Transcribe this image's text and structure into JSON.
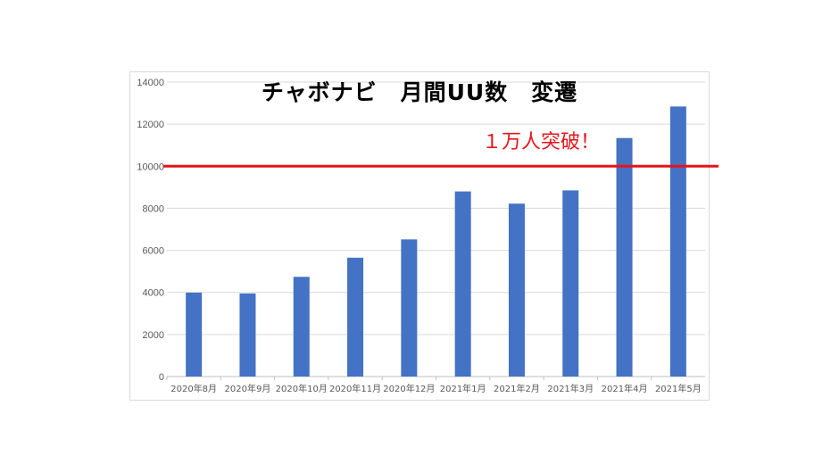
{
  "chart_data": {
    "type": "bar",
    "title": "チャボナビ　月間UU数　変遷",
    "xlabel": "",
    "ylabel": "",
    "categories": [
      "2020年8月",
      "2020年9月",
      "2020年10月",
      "2020年11月",
      "2020年12月",
      "2021年1月",
      "2021年2月",
      "2021年3月",
      "2021年4月",
      "2021年5月"
    ],
    "values": [
      3990,
      3950,
      4740,
      5650,
      6520,
      8800,
      8220,
      8850,
      11340,
      12840
    ],
    "ylim": [
      0,
      14000
    ],
    "yticks": [
      0,
      2000,
      4000,
      6000,
      8000,
      10000,
      12000,
      14000
    ],
    "grid": true,
    "bar_color": "#4472c4",
    "reference_line": {
      "value": 10000,
      "color": "#e8141b"
    },
    "annotation": "１万人突破！"
  }
}
